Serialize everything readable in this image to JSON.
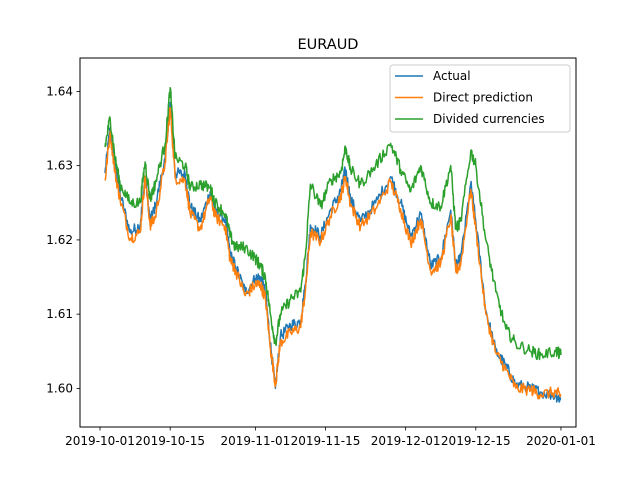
{
  "chart_data": {
    "type": "line",
    "title": "EURAUD",
    "xlabel": "",
    "ylabel": "",
    "xlim": [
      "2019-09-27",
      "2020-01-04"
    ],
    "ylim": [
      1.5948,
      1.6445
    ],
    "x_ticks": [
      "2019-10-01",
      "2019-10-15",
      "2019-11-01",
      "2019-11-15",
      "2019-12-01",
      "2019-12-15",
      "2020-01-01"
    ],
    "y_ticks": [
      1.6,
      1.61,
      1.62,
      1.63,
      1.64
    ],
    "y_tick_labels": [
      "1.60",
      "1.61",
      "1.62",
      "1.63",
      "1.64"
    ],
    "grid": false,
    "legend_position": "top-right",
    "series": [
      {
        "name": "Actual",
        "color": "#1f77b4",
        "points": [
          [
            "2019-10-02",
            1.629
          ],
          [
            "2019-10-03",
            1.635
          ],
          [
            "2019-10-04",
            1.63
          ],
          [
            "2019-10-05",
            1.6262
          ],
          [
            "2019-10-07",
            1.621
          ],
          [
            "2019-10-09",
            1.622
          ],
          [
            "2019-10-10",
            1.6285
          ],
          [
            "2019-10-11",
            1.6225
          ],
          [
            "2019-10-12",
            1.6245
          ],
          [
            "2019-10-14",
            1.631
          ],
          [
            "2019-10-15",
            1.6385
          ],
          [
            "2019-10-16",
            1.629
          ],
          [
            "2019-10-18",
            1.6288
          ],
          [
            "2019-10-19",
            1.6245
          ],
          [
            "2019-10-21",
            1.6225
          ],
          [
            "2019-10-23",
            1.6265
          ],
          [
            "2019-10-24",
            1.624
          ],
          [
            "2019-10-26",
            1.6228
          ],
          [
            "2019-10-27",
            1.618
          ],
          [
            "2019-10-28",
            1.6165
          ],
          [
            "2019-10-30",
            1.613
          ],
          [
            "2019-11-01",
            1.6148
          ],
          [
            "2019-11-02",
            1.615
          ],
          [
            "2019-11-03",
            1.613
          ],
          [
            "2019-11-04",
            1.606
          ],
          [
            "2019-11-05",
            1.6
          ],
          [
            "2019-11-06",
            1.607
          ],
          [
            "2019-11-08",
            1.6085
          ],
          [
            "2019-11-10",
            1.609
          ],
          [
            "2019-11-11",
            1.614
          ],
          [
            "2019-11-12",
            1.622
          ],
          [
            "2019-11-14",
            1.6205
          ],
          [
            "2019-11-16",
            1.624
          ],
          [
            "2019-11-18",
            1.6265
          ],
          [
            "2019-11-19",
            1.6295
          ],
          [
            "2019-11-20",
            1.6255
          ],
          [
            "2019-11-22",
            1.6225
          ],
          [
            "2019-11-25",
            1.625
          ],
          [
            "2019-11-28",
            1.6285
          ],
          [
            "2019-11-30",
            1.625
          ],
          [
            "2019-12-02",
            1.6205
          ],
          [
            "2019-12-04",
            1.6235
          ],
          [
            "2019-12-06",
            1.6165
          ],
          [
            "2019-12-08",
            1.6175
          ],
          [
            "2019-12-10",
            1.624
          ],
          [
            "2019-12-11",
            1.6165
          ],
          [
            "2019-12-12",
            1.6175
          ],
          [
            "2019-12-14",
            1.6275
          ],
          [
            "2019-12-15",
            1.6225
          ],
          [
            "2019-12-17",
            1.6105
          ],
          [
            "2019-12-19",
            1.605
          ],
          [
            "2019-12-21",
            1.603
          ],
          [
            "2019-12-23",
            1.6005
          ],
          [
            "2019-12-26",
            1.6
          ],
          [
            "2019-12-28",
            1.5995
          ],
          [
            "2019-12-31",
            1.599
          ],
          [
            "2020-01-01",
            1.5985
          ]
        ]
      },
      {
        "name": "Direct prediction",
        "color": "#ff7f0e",
        "points": [
          [
            "2019-10-02",
            1.628
          ],
          [
            "2019-10-03",
            1.6345
          ],
          [
            "2019-10-04",
            1.629
          ],
          [
            "2019-10-05",
            1.6255
          ],
          [
            "2019-10-07",
            1.6202
          ],
          [
            "2019-10-09",
            1.621
          ],
          [
            "2019-10-10",
            1.6285
          ],
          [
            "2019-10-11",
            1.622
          ],
          [
            "2019-10-12",
            1.623
          ],
          [
            "2019-10-14",
            1.6305
          ],
          [
            "2019-10-15",
            1.6378
          ],
          [
            "2019-10-16",
            1.6283
          ],
          [
            "2019-10-18",
            1.628
          ],
          [
            "2019-10-19",
            1.6235
          ],
          [
            "2019-10-21",
            1.6215
          ],
          [
            "2019-10-23",
            1.6258
          ],
          [
            "2019-10-24",
            1.6232
          ],
          [
            "2019-10-26",
            1.6218
          ],
          [
            "2019-10-27",
            1.6172
          ],
          [
            "2019-10-28",
            1.616
          ],
          [
            "2019-10-30",
            1.6125
          ],
          [
            "2019-11-01",
            1.614
          ],
          [
            "2019-11-02",
            1.614
          ],
          [
            "2019-11-03",
            1.6122
          ],
          [
            "2019-11-04",
            1.6055
          ],
          [
            "2019-11-05",
            1.6005
          ],
          [
            "2019-11-06",
            1.6062
          ],
          [
            "2019-11-08",
            1.6075
          ],
          [
            "2019-11-10",
            1.6082
          ],
          [
            "2019-11-11",
            1.6132
          ],
          [
            "2019-11-12",
            1.621
          ],
          [
            "2019-11-14",
            1.6198
          ],
          [
            "2019-11-16",
            1.6232
          ],
          [
            "2019-11-18",
            1.6258
          ],
          [
            "2019-11-19",
            1.6285
          ],
          [
            "2019-11-20",
            1.6248
          ],
          [
            "2019-11-22",
            1.6218
          ],
          [
            "2019-11-25",
            1.6242
          ],
          [
            "2019-11-28",
            1.6278
          ],
          [
            "2019-11-30",
            1.6242
          ],
          [
            "2019-12-02",
            1.6195
          ],
          [
            "2019-12-04",
            1.6228
          ],
          [
            "2019-12-06",
            1.6158
          ],
          [
            "2019-12-08",
            1.6168
          ],
          [
            "2019-12-10",
            1.6232
          ],
          [
            "2019-12-11",
            1.6158
          ],
          [
            "2019-12-12",
            1.6168
          ],
          [
            "2019-12-14",
            1.6268
          ],
          [
            "2019-12-15",
            1.6215
          ],
          [
            "2019-12-17",
            1.61
          ],
          [
            "2019-12-19",
            1.6048
          ],
          [
            "2019-12-21",
            1.6025
          ],
          [
            "2019-12-23",
            1.6
          ],
          [
            "2019-12-26",
            1.5998
          ],
          [
            "2019-12-28",
            1.5992
          ],
          [
            "2019-12-31",
            1.5995
          ],
          [
            "2020-01-01",
            1.599
          ]
        ]
      },
      {
        "name": "Divided currencies",
        "color": "#2ca02c",
        "points": [
          [
            "2019-10-02",
            1.6325
          ],
          [
            "2019-10-03",
            1.6365
          ],
          [
            "2019-10-04",
            1.631
          ],
          [
            "2019-10-05",
            1.6275
          ],
          [
            "2019-10-07",
            1.625
          ],
          [
            "2019-10-09",
            1.625
          ],
          [
            "2019-10-10",
            1.6305
          ],
          [
            "2019-10-11",
            1.6255
          ],
          [
            "2019-10-12",
            1.6275
          ],
          [
            "2019-10-14",
            1.633
          ],
          [
            "2019-10-15",
            1.6405
          ],
          [
            "2019-10-16",
            1.631
          ],
          [
            "2019-10-18",
            1.63
          ],
          [
            "2019-10-19",
            1.627
          ],
          [
            "2019-10-21",
            1.6275
          ],
          [
            "2019-10-23",
            1.627
          ],
          [
            "2019-10-24",
            1.625
          ],
          [
            "2019-10-26",
            1.6235
          ],
          [
            "2019-10-27",
            1.6205
          ],
          [
            "2019-10-28",
            1.619
          ],
          [
            "2019-10-30",
            1.619
          ],
          [
            "2019-11-01",
            1.6175
          ],
          [
            "2019-11-02",
            1.6165
          ],
          [
            "2019-11-03",
            1.615
          ],
          [
            "2019-11-04",
            1.61
          ],
          [
            "2019-11-05",
            1.606
          ],
          [
            "2019-11-06",
            1.61
          ],
          [
            "2019-11-08",
            1.612
          ],
          [
            "2019-11-10",
            1.613
          ],
          [
            "2019-11-11",
            1.618
          ],
          [
            "2019-11-12",
            1.6275
          ],
          [
            "2019-11-14",
            1.6245
          ],
          [
            "2019-11-16",
            1.628
          ],
          [
            "2019-11-18",
            1.629
          ],
          [
            "2019-11-19",
            1.6325
          ],
          [
            "2019-11-20",
            1.6295
          ],
          [
            "2019-11-22",
            1.6275
          ],
          [
            "2019-11-25",
            1.63
          ],
          [
            "2019-11-28",
            1.633
          ],
          [
            "2019-11-30",
            1.6295
          ],
          [
            "2019-12-02",
            1.6265
          ],
          [
            "2019-12-04",
            1.63
          ],
          [
            "2019-12-06",
            1.625
          ],
          [
            "2019-12-08",
            1.6245
          ],
          [
            "2019-12-10",
            1.63
          ],
          [
            "2019-12-11",
            1.6215
          ],
          [
            "2019-12-12",
            1.6225
          ],
          [
            "2019-12-14",
            1.632
          ],
          [
            "2019-12-15",
            1.63
          ],
          [
            "2019-12-17",
            1.62
          ],
          [
            "2019-12-19",
            1.613
          ],
          [
            "2019-12-21",
            1.608
          ],
          [
            "2019-12-23",
            1.606
          ],
          [
            "2019-12-26",
            1.605
          ],
          [
            "2019-12-28",
            1.6045
          ],
          [
            "2019-12-31",
            1.605
          ],
          [
            "2020-01-01",
            1.6045
          ]
        ]
      }
    ]
  }
}
